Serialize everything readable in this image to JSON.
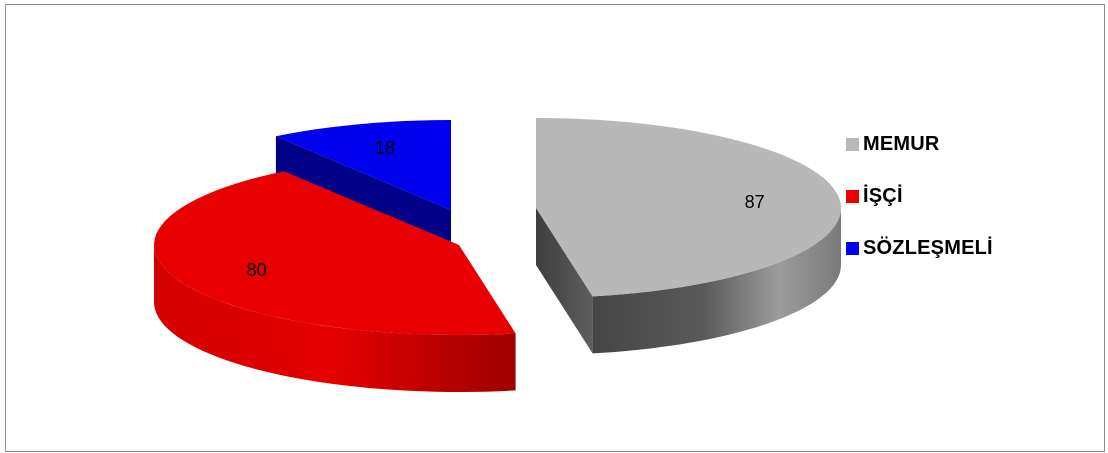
{
  "chart_data": {
    "type": "pie",
    "categories": [
      "MEMUR",
      "İŞÇİ",
      "SÖZLEŞMELİ"
    ],
    "values": [
      87,
      80,
      18
    ],
    "data_labels": [
      "87",
      "80",
      "18"
    ],
    "title": "",
    "style": "3d-exploded",
    "legend_position": "right",
    "colors": {
      "MEMUR": {
        "top": "#b8b8b8",
        "side_dark": "#4f4f4f",
        "side_light": "#9a9a9a"
      },
      "İŞÇİ": {
        "top": "#e80000",
        "side_dark": "#d00000",
        "side_light": "#a80000"
      },
      "SÖZLEŞMELİ": {
        "top": "#0000ee",
        "side_dark": "#000088",
        "side_light": "#00009e"
      }
    }
  }
}
